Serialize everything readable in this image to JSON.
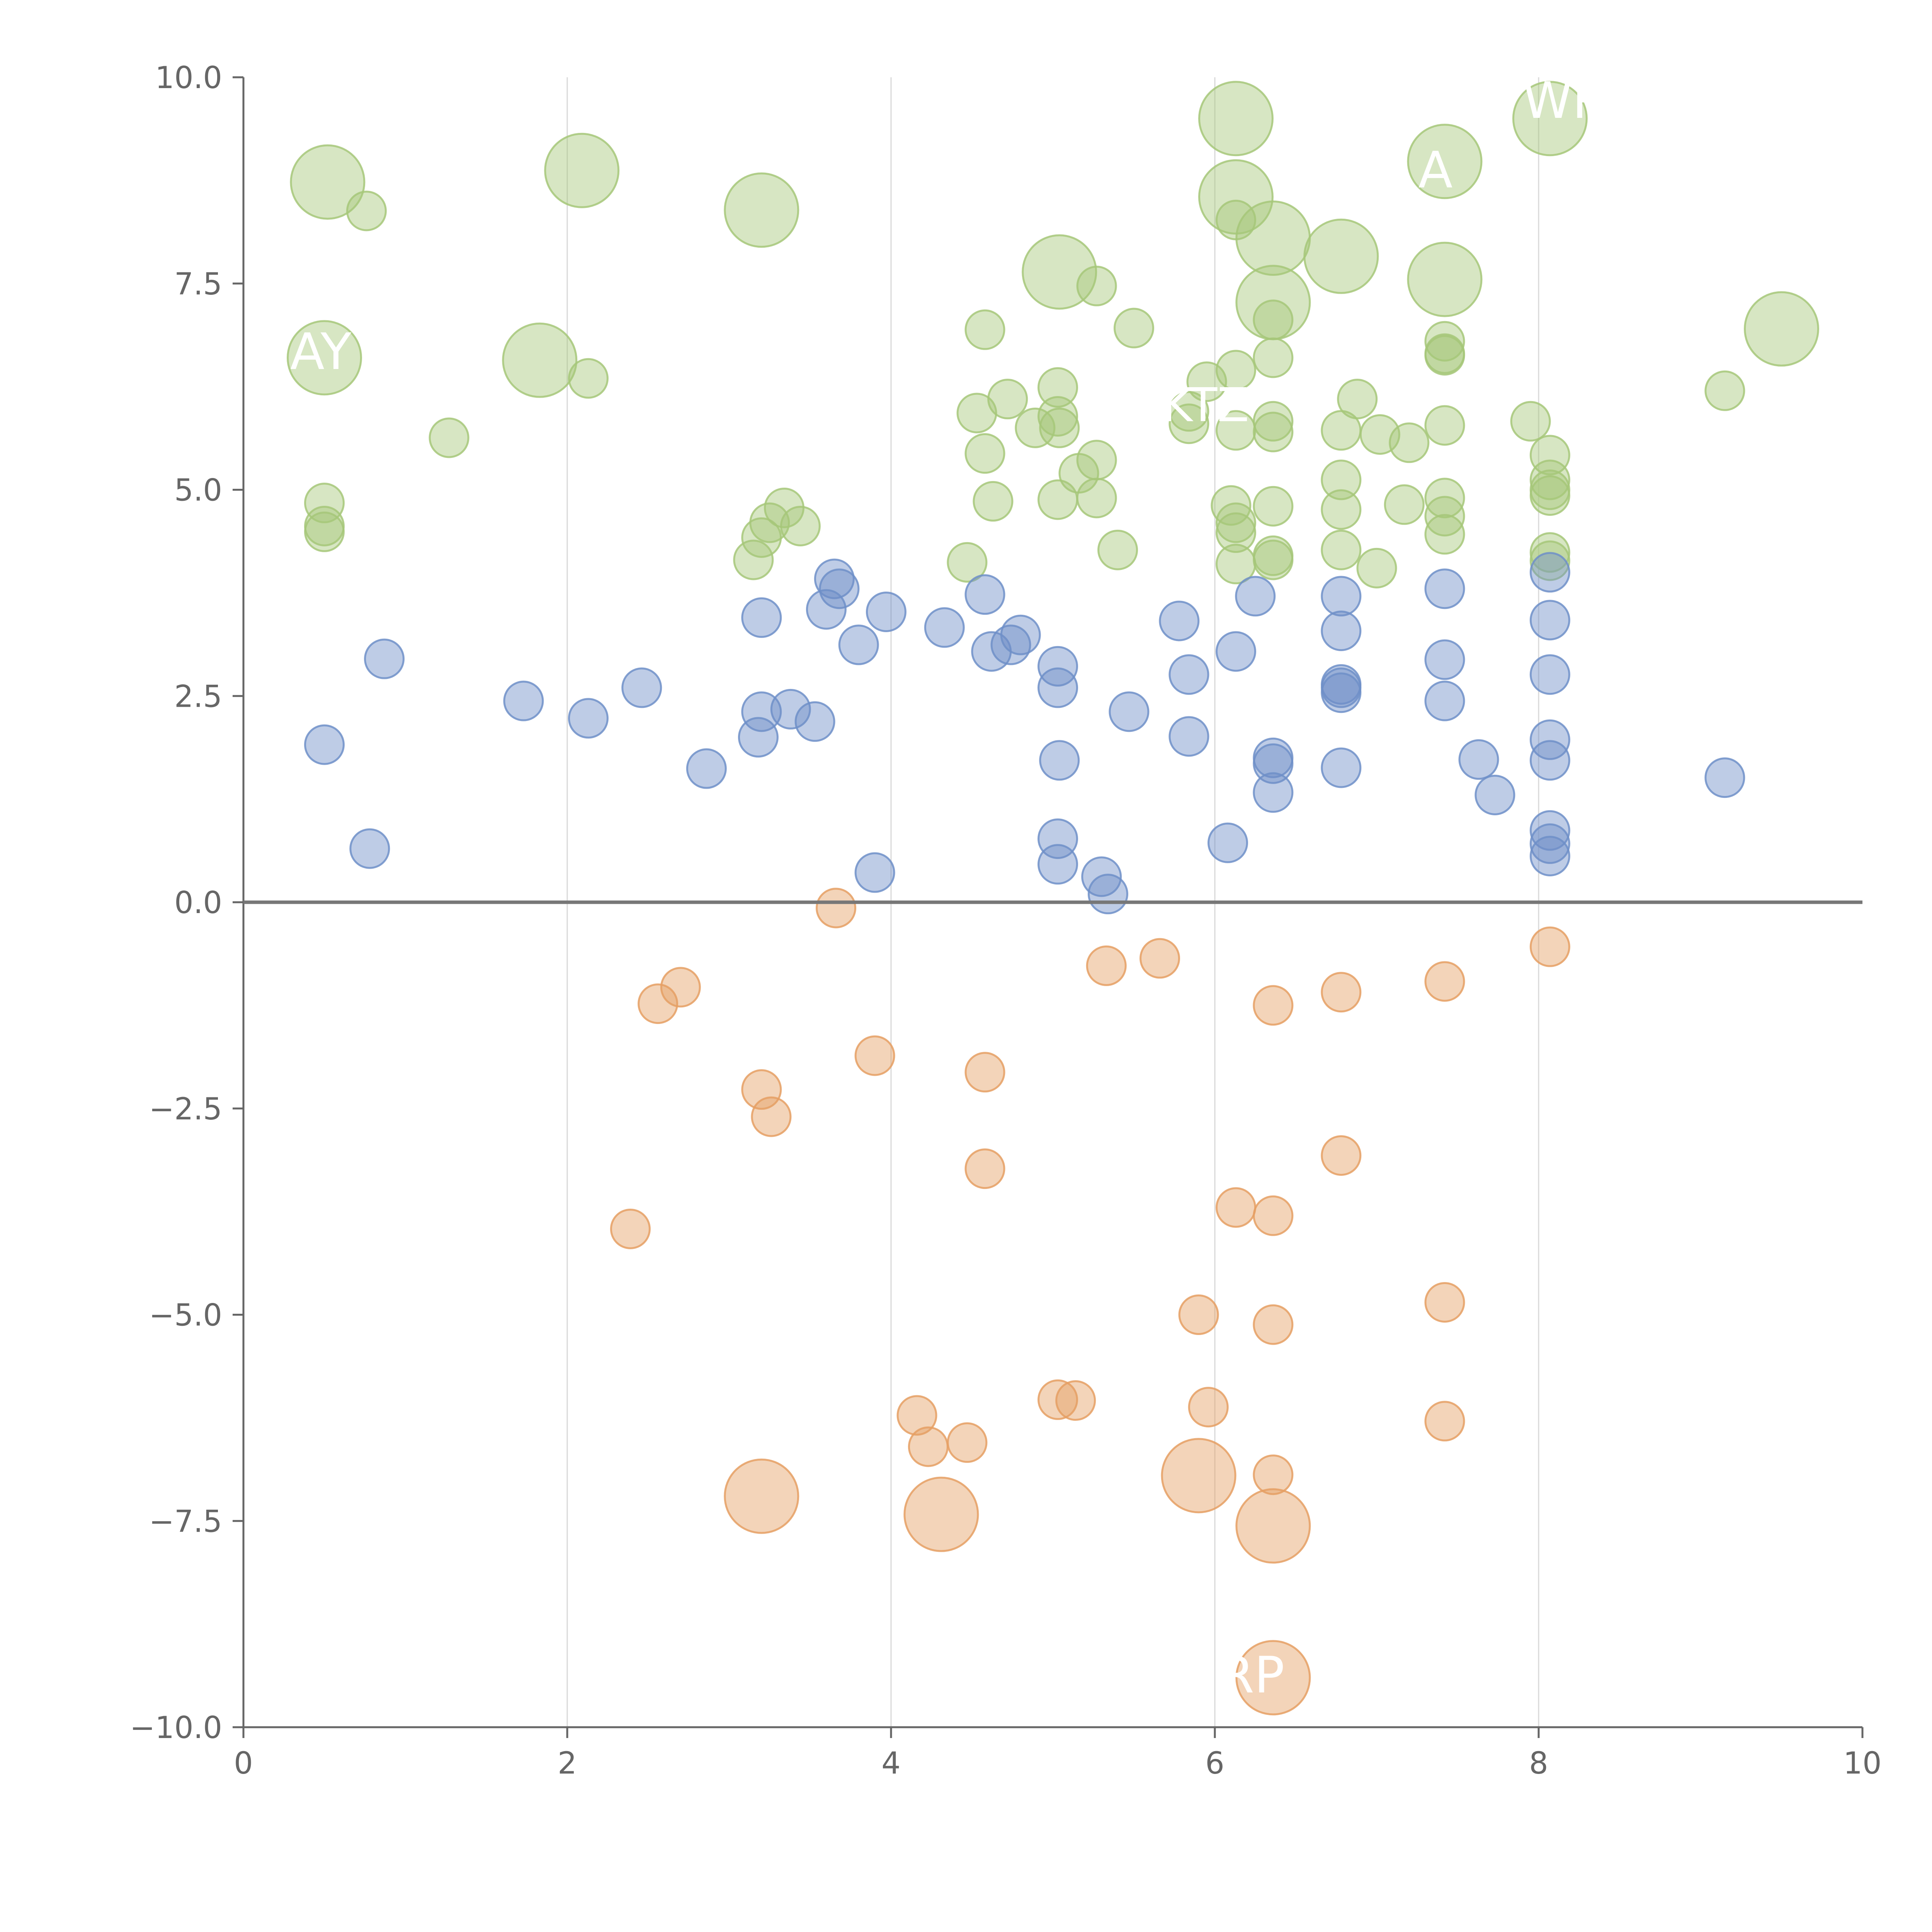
{
  "chart_data": {
    "type": "scatter",
    "title": "",
    "xlabel": "",
    "ylabel": "",
    "xlim": [
      0,
      10
    ],
    "ylim": [
      -10,
      10
    ],
    "grid": {
      "vertical": true,
      "horizontal": false
    },
    "zero_line": true,
    "x_ticks": [
      0,
      2,
      4,
      6,
      8,
      10
    ],
    "x_tick_labels": [
      "0",
      "2",
      "4",
      "6",
      "8",
      "10"
    ],
    "y_ticks": [
      10,
      7.5,
      5,
      2.5,
      0,
      -2.5,
      -5,
      -7.5,
      -10
    ],
    "y_tick_labels": [
      "10.0",
      "7.5",
      "5.0",
      "2.5",
      "0.0",
      "−2.5",
      "−5.0",
      "−7.5",
      "−10.0"
    ],
    "colors": {
      "green": "#a6c779",
      "blue": "#6f8fc8",
      "orange": "#e59f63",
      "axis": "#666666",
      "grid": "#d8d8d8",
      "zero": "#777777"
    },
    "series": [
      {
        "name": "green",
        "points": [
          [
            0.52,
            8.73,
            "l"
          ],
          [
            0.76,
            8.38,
            "s"
          ],
          [
            2.09,
            8.87,
            "l"
          ],
          [
            3.2,
            8.39,
            "l"
          ],
          [
            0.5,
            6.6,
            "l"
          ],
          [
            1.83,
            6.57,
            "l"
          ],
          [
            2.13,
            6.35,
            "s"
          ],
          [
            1.27,
            5.63,
            "s"
          ],
          [
            0.5,
            4.84,
            "s"
          ],
          [
            0.5,
            4.56,
            "s"
          ],
          [
            0.5,
            4.49,
            "s"
          ],
          [
            3.34,
            4.78,
            "s"
          ],
          [
            3.25,
            4.6,
            "s"
          ],
          [
            3.2,
            4.42,
            "s"
          ],
          [
            3.44,
            4.56,
            "s"
          ],
          [
            3.15,
            4.15,
            "s"
          ],
          [
            4.47,
            4.12,
            "s"
          ],
          [
            4.58,
            5.44,
            "s"
          ],
          [
            4.53,
            5.93,
            "s"
          ],
          [
            4.58,
            6.94,
            "s"
          ],
          [
            4.72,
            6.1,
            "s"
          ],
          [
            4.63,
            4.86,
            "s"
          ],
          [
            4.89,
            5.75,
            "s"
          ],
          [
            5.03,
            6.24,
            "s"
          ],
          [
            5.03,
            5.89,
            "s"
          ],
          [
            5.04,
            5.75,
            "s"
          ],
          [
            5.03,
            4.88,
            "s"
          ],
          [
            5.04,
            7.64,
            "l"
          ],
          [
            5.16,
            5.2,
            "s"
          ],
          [
            5.27,
            7.47,
            "s"
          ],
          [
            5.27,
            5.36,
            "s"
          ],
          [
            5.27,
            4.9,
            "s"
          ],
          [
            5.4,
            4.27,
            "s"
          ],
          [
            5.5,
            6.96,
            "s"
          ],
          [
            5.84,
            5.8,
            "s"
          ],
          [
            5.84,
            5.95,
            "s"
          ],
          [
            5.95,
            6.31,
            "s"
          ],
          [
            6.13,
            9.5,
            "l"
          ],
          [
            6.13,
            8.55,
            "l"
          ],
          [
            6.13,
            8.27,
            "s"
          ],
          [
            6.36,
            8.05,
            "l"
          ],
          [
            6.36,
            7.27,
            "l"
          ],
          [
            6.36,
            7.06,
            "s"
          ],
          [
            6.13,
            6.45,
            "s"
          ],
          [
            6.13,
            5.72,
            "s"
          ],
          [
            6.36,
            6.6,
            "s"
          ],
          [
            6.36,
            5.83,
            "s"
          ],
          [
            6.36,
            5.7,
            "s"
          ],
          [
            6.36,
            4.8,
            "s"
          ],
          [
            6.36,
            4.2,
            "s"
          ],
          [
            6.36,
            4.15,
            "s"
          ],
          [
            6.1,
            4.81,
            "s"
          ],
          [
            6.13,
            4.6,
            "s"
          ],
          [
            6.13,
            4.48,
            "s"
          ],
          [
            6.13,
            4.1,
            "s"
          ],
          [
            6.78,
            7.83,
            "l"
          ],
          [
            6.78,
            5.72,
            "s"
          ],
          [
            6.78,
            5.12,
            "s"
          ],
          [
            6.78,
            4.76,
            "s"
          ],
          [
            6.78,
            4.27,
            "s"
          ],
          [
            6.88,
            6.1,
            "s"
          ],
          [
            7.02,
            5.67,
            "s"
          ],
          [
            7.0,
            4.05,
            "s"
          ],
          [
            7.17,
            4.82,
            "s"
          ],
          [
            7.2,
            5.57,
            "s"
          ],
          [
            7.42,
            8.98,
            "l"
          ],
          [
            7.42,
            7.55,
            "l"
          ],
          [
            7.42,
            6.8,
            "s"
          ],
          [
            7.42,
            6.65,
            "s"
          ],
          [
            7.42,
            6.63,
            "s"
          ],
          [
            7.42,
            5.78,
            "s"
          ],
          [
            7.42,
            4.9,
            "s"
          ],
          [
            7.42,
            4.68,
            "s"
          ],
          [
            7.42,
            4.46,
            "s"
          ],
          [
            8.07,
            9.5,
            "l"
          ],
          [
            7.95,
            5.83,
            "s"
          ],
          [
            8.07,
            5.42,
            "s"
          ],
          [
            8.07,
            5.12,
            "s"
          ],
          [
            8.07,
            5.0,
            "s"
          ],
          [
            8.07,
            4.93,
            "s"
          ],
          [
            8.07,
            4.24,
            "s"
          ],
          [
            8.07,
            4.14,
            "s"
          ],
          [
            9.15,
            6.2,
            "s"
          ],
          [
            9.5,
            6.95,
            "l"
          ]
        ]
      },
      {
        "name": "blue",
        "points": [
          [
            0.87,
            2.95,
            "s"
          ],
          [
            1.73,
            2.44,
            "s"
          ],
          [
            0.5,
            1.91,
            "s"
          ],
          [
            0.78,
            0.65,
            "s"
          ],
          [
            2.13,
            2.23,
            "s"
          ],
          [
            2.46,
            2.6,
            "s"
          ],
          [
            2.86,
            1.62,
            "s"
          ],
          [
            3.2,
            3.45,
            "s"
          ],
          [
            3.2,
            2.31,
            "s"
          ],
          [
            3.18,
            2.0,
            "s"
          ],
          [
            3.38,
            2.34,
            "s"
          ],
          [
            3.53,
            2.19,
            "s"
          ],
          [
            3.65,
            3.92,
            "s"
          ],
          [
            3.68,
            3.8,
            "s"
          ],
          [
            3.6,
            3.55,
            "s"
          ],
          [
            3.8,
            3.12,
            "s"
          ],
          [
            3.97,
            3.52,
            "s"
          ],
          [
            3.9,
            0.36,
            "s"
          ],
          [
            4.33,
            3.33,
            "s"
          ],
          [
            4.58,
            3.73,
            "s"
          ],
          [
            4.62,
            3.04,
            "s"
          ],
          [
            4.74,
            3.12,
            "s"
          ],
          [
            4.8,
            3.24,
            "s"
          ],
          [
            5.03,
            2.86,
            "s"
          ],
          [
            5.03,
            2.6,
            "s"
          ],
          [
            5.04,
            1.72,
            "s"
          ],
          [
            5.03,
            0.77,
            "s"
          ],
          [
            5.03,
            0.46,
            "s"
          ],
          [
            5.3,
            0.31,
            "s"
          ],
          [
            5.34,
            0.1,
            "s"
          ],
          [
            5.47,
            2.31,
            "s"
          ],
          [
            5.78,
            3.41,
            "s"
          ],
          [
            5.84,
            2.76,
            "s"
          ],
          [
            5.84,
            2.01,
            "s"
          ],
          [
            6.08,
            0.72,
            "s"
          ],
          [
            6.13,
            3.04,
            "s"
          ],
          [
            6.25,
            3.71,
            "s"
          ],
          [
            6.36,
            1.75,
            "s"
          ],
          [
            6.36,
            1.68,
            "s"
          ],
          [
            6.36,
            1.33,
            "s"
          ],
          [
            6.78,
            3.71,
            "s"
          ],
          [
            6.78,
            3.29,
            "s"
          ],
          [
            6.78,
            2.64,
            "s"
          ],
          [
            6.78,
            2.6,
            "s"
          ],
          [
            6.78,
            2.54,
            "s"
          ],
          [
            6.78,
            1.63,
            "s"
          ],
          [
            7.42,
            3.8,
            "s"
          ],
          [
            7.42,
            2.94,
            "s"
          ],
          [
            7.42,
            2.44,
            "s"
          ],
          [
            7.63,
            1.73,
            "s"
          ],
          [
            7.73,
            1.3,
            "s"
          ],
          [
            8.07,
            4.0,
            "s"
          ],
          [
            8.07,
            3.42,
            "s"
          ],
          [
            8.07,
            2.76,
            "s"
          ],
          [
            8.07,
            1.97,
            "s"
          ],
          [
            8.07,
            1.72,
            "s"
          ],
          [
            8.07,
            0.87,
            "s"
          ],
          [
            8.07,
            0.71,
            "s"
          ],
          [
            8.07,
            0.56,
            "s"
          ],
          [
            9.15,
            1.51,
            "s"
          ]
        ]
      },
      {
        "name": "orange",
        "points": [
          [
            3.66,
            -0.07,
            "s"
          ],
          [
            2.7,
            -1.03,
            "s"
          ],
          [
            2.56,
            -1.23,
            "s"
          ],
          [
            3.2,
            -2.27,
            "s"
          ],
          [
            3.26,
            -2.6,
            "s"
          ],
          [
            2.39,
            -3.96,
            "s"
          ],
          [
            3.9,
            -1.86,
            "s"
          ],
          [
            4.58,
            -2.06,
            "s"
          ],
          [
            4.58,
            -3.23,
            "s"
          ],
          [
            5.33,
            -0.77,
            "s"
          ],
          [
            5.66,
            -0.68,
            "s"
          ],
          [
            6.36,
            -1.25,
            "s"
          ],
          [
            6.78,
            -1.09,
            "s"
          ],
          [
            7.42,
            -0.96,
            "s"
          ],
          [
            8.07,
            -0.54,
            "s"
          ],
          [
            6.78,
            -3.07,
            "s"
          ],
          [
            6.13,
            -3.7,
            "s"
          ],
          [
            6.36,
            -3.8,
            "s"
          ],
          [
            5.9,
            -5.0,
            "s"
          ],
          [
            6.36,
            -5.12,
            "s"
          ],
          [
            7.42,
            -4.85,
            "s"
          ],
          [
            7.42,
            -6.29,
            "s"
          ],
          [
            4.16,
            -6.22,
            "s"
          ],
          [
            4.23,
            -6.6,
            "s"
          ],
          [
            4.47,
            -6.55,
            "s"
          ],
          [
            5.03,
            -6.03,
            "s"
          ],
          [
            5.14,
            -6.04,
            "s"
          ],
          [
            5.96,
            -6.12,
            "s"
          ],
          [
            6.36,
            -6.94,
            "s"
          ],
          [
            3.2,
            -7.2,
            "l"
          ],
          [
            4.31,
            -7.42,
            "l"
          ],
          [
            5.9,
            -6.95,
            "l"
          ],
          [
            6.36,
            -7.56,
            "l"
          ],
          [
            6.36,
            -9.4,
            "l"
          ]
        ]
      }
    ],
    "labels": [
      "AY",
      "A",
      "WR",
      "RP",
      "KTZ"
    ]
  }
}
